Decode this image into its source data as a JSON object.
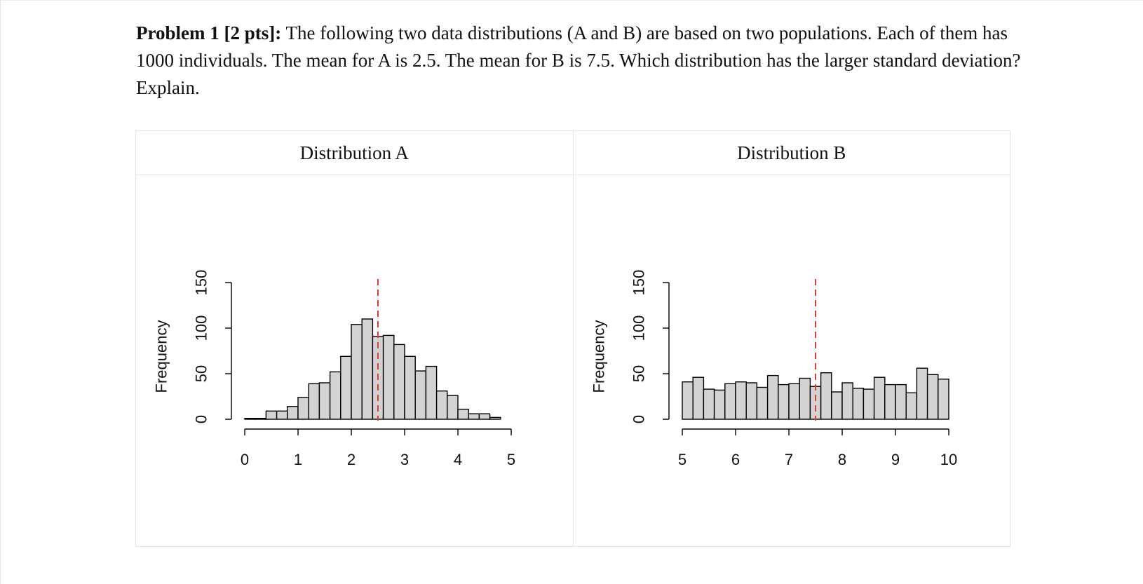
{
  "problem": {
    "heading": "Problem 1 [2 pts]:",
    "text": " The following two data distributions (A and B) are based on two populations. Each of them has 1000 individuals. The mean for A is 2.5. The mean for B is 7.5. Which distribution has the larger standard deviation? Explain."
  },
  "figures": {
    "a_title": "Distribution A",
    "b_title": "Distribution B"
  },
  "chart_data": [
    {
      "type": "bar",
      "title": "Distribution A",
      "ylabel": "Frequency",
      "xlabel": "",
      "bin_width": 0.2,
      "bin_starts": [
        0.0,
        0.2,
        0.4,
        0.6,
        0.8,
        1.0,
        1.2,
        1.4,
        1.6,
        1.8,
        2.0,
        2.2,
        2.4,
        2.6,
        2.8,
        3.0,
        3.2,
        3.4,
        3.6,
        3.8,
        4.0,
        4.2,
        4.4,
        4.6,
        4.8
      ],
      "values": [
        1,
        1,
        9,
        9,
        14,
        24,
        39,
        40,
        52,
        69,
        104,
        110,
        91,
        92,
        82,
        69,
        53,
        58,
        31,
        26,
        11,
        6,
        6,
        2,
        0
      ],
      "xlim": [
        0,
        5
      ],
      "ylim": [
        0,
        150
      ],
      "xticks": [
        "0",
        "1",
        "2",
        "3",
        "4",
        "5"
      ],
      "yticks": [
        "0",
        "50",
        "100",
        "150"
      ],
      "mean_line": 2.5,
      "bar_color": "#d3d3d3",
      "mean_color": "#e03c31"
    },
    {
      "type": "bar",
      "title": "Distribution B",
      "ylabel": "Frequency",
      "xlabel": "",
      "bin_width": 0.2,
      "bin_starts": [
        5.0,
        5.2,
        5.4,
        5.6,
        5.8,
        6.0,
        6.2,
        6.4,
        6.6,
        6.8,
        7.0,
        7.2,
        7.4,
        7.6,
        7.8,
        8.0,
        8.2,
        8.4,
        8.6,
        8.8,
        9.0,
        9.2,
        9.4,
        9.6,
        9.8
      ],
      "values": [
        41,
        46,
        33,
        32,
        39,
        41,
        40,
        35,
        48,
        38,
        39,
        45,
        36,
        51,
        30,
        40,
        34,
        33,
        46,
        38,
        38,
        29,
        56,
        49,
        44
      ],
      "xlim": [
        5,
        10
      ],
      "ylim": [
        0,
        150
      ],
      "xticks": [
        "5",
        "6",
        "7",
        "8",
        "9",
        "10"
      ],
      "yticks": [
        "0",
        "50",
        "100",
        "150"
      ],
      "mean_line": 7.5,
      "bar_color": "#d3d3d3",
      "mean_color": "#e03c31"
    }
  ]
}
